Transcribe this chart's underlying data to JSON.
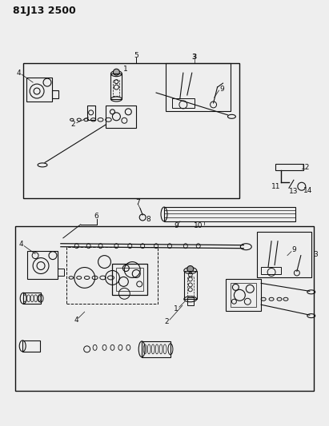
{
  "title": "81J13 2500",
  "bg_color": "#eeeeee",
  "line_color": "#111111",
  "title_fontsize": 9,
  "label_fontsize": 6.5,
  "fig_width": 4.11,
  "fig_height": 5.33,
  "dpi": 100
}
